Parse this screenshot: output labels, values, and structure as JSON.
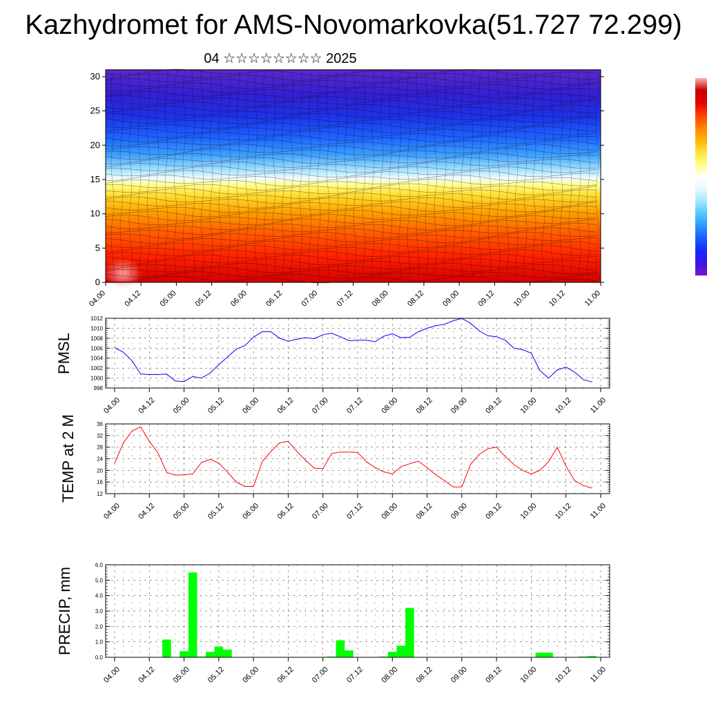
{
  "title": "Kazhydromet for AMS-Novomarkovka(51.727 72.299)",
  "subtitle": "04 ☆☆☆☆☆☆☆☆ 2025",
  "cross_section": {
    "y_ticks": [
      "0",
      "5",
      "10",
      "15",
      "20",
      "25",
      "30"
    ],
    "x_ticks": [
      "04.00",
      "04.12",
      "05.00",
      "05.12",
      "06.00",
      "06.12",
      "07.00",
      "07.12",
      "08.00",
      "08.12",
      "09.00",
      "09.12",
      "10.00",
      "10.12",
      "11.00"
    ]
  },
  "colorbar": {
    "colors": [
      "#7a14c8",
      "#3c14e6",
      "#1428ff",
      "#1e5aff",
      "#2896ff",
      "#50c8ff",
      "#a0e6ff",
      "#e6f8ff",
      "#ffffff",
      "#ffff80",
      "#ffe040",
      "#ffb400",
      "#ff8000",
      "#ff4000",
      "#e60000",
      "#c80000",
      "#ffb4b4"
    ]
  },
  "chart_data": [
    {
      "type": "line",
      "ylabel": "PMSL",
      "ylim": [
        998,
        1012
      ],
      "y_ticks": [
        "998",
        "1000",
        "1002",
        "1004",
        "1006",
        "1008",
        "1010",
        "1012"
      ],
      "categories": [
        "04.00",
        "04.12",
        "05.00",
        "05.12",
        "06.00",
        "06.12",
        "07.00",
        "07.12",
        "08.00",
        "08.12",
        "09.00",
        "09.12",
        "10.00",
        "10.12",
        "11.00"
      ],
      "x": [
        0,
        0.125,
        0.25,
        0.375,
        0.5,
        0.625,
        0.75,
        0.875,
        1,
        1.125,
        1.25,
        1.375,
        1.5,
        1.625,
        1.75,
        1.875,
        2,
        2.125,
        2.25,
        2.375,
        2.5,
        2.625,
        2.75,
        2.875,
        3,
        3.125,
        3.25,
        3.375,
        3.5,
        3.625,
        3.75,
        3.875,
        4,
        4.125,
        4.25,
        4.375,
        4.5,
        4.625,
        4.75,
        4.875,
        5,
        5.125,
        5.25,
        5.375,
        5.5,
        5.625,
        5.75,
        5.875,
        6,
        6.125,
        6.25,
        6.375,
        6.5,
        6.625,
        6.75,
        6.875,
        7
      ],
      "series": [
        {
          "color": "#0000ff",
          "values": [
            1006.1,
            1005.2,
            1003.5,
            1000.8,
            1000.7,
            1000.7,
            1000.8,
            999.4,
            999.3,
            1000.3,
            1000.0,
            1001.0,
            1002.7,
            1004.2,
            1005.8,
            1006.5,
            1008.2,
            1009.3,
            1009.3,
            1008.0,
            1007.4,
            1007.8,
            1008.1,
            1007.9,
            1008.7,
            1009.0,
            1008.3,
            1007.5,
            1007.6,
            1007.6,
            1007.3,
            1008.4,
            1008.9,
            1008.1,
            1008.2,
            1009.3,
            1010.0,
            1010.5,
            1010.8,
            1011.5,
            1012.0,
            1011.0,
            1009.5,
            1008.5,
            1008.3,
            1007.6,
            1006.0,
            1005.7,
            1005.0,
            1001.5,
            1000.0,
            1001.6,
            1002.2,
            1001.2,
            999.7,
            999.2,
            null
          ]
        }
      ]
    },
    {
      "type": "line",
      "ylabel": "TEMP at 2 M",
      "ylim": [
        12,
        36
      ],
      "y_ticks": [
        "12",
        "16",
        "20",
        "24",
        "28",
        "32",
        "36"
      ],
      "categories": [
        "04.00",
        "04.12",
        "05.00",
        "05.12",
        "06.00",
        "06.12",
        "07.00",
        "07.12",
        "08.00",
        "08.12",
        "09.00",
        "09.12",
        "10.00",
        "10.12",
        "11.00"
      ],
      "x": [
        0,
        0.125,
        0.25,
        0.375,
        0.5,
        0.625,
        0.75,
        0.875,
        1,
        1.125,
        1.25,
        1.375,
        1.5,
        1.625,
        1.75,
        1.875,
        2,
        2.125,
        2.25,
        2.375,
        2.5,
        2.625,
        2.75,
        2.875,
        3,
        3.125,
        3.25,
        3.375,
        3.5,
        3.625,
        3.75,
        3.875,
        4,
        4.125,
        4.25,
        4.375,
        4.5,
        4.625,
        4.75,
        4.875,
        5,
        5.125,
        5.25,
        5.375,
        5.5,
        5.625,
        5.75,
        5.875,
        6,
        6.125,
        6.25,
        6.375,
        6.5,
        6.625,
        6.75,
        6.875
      ],
      "series": [
        {
          "color": "#ff0000",
          "values": [
            22.5,
            29.5,
            33.5,
            35.0,
            30.0,
            26.0,
            19.3,
            18.4,
            18.5,
            18.8,
            22.7,
            23.8,
            22.5,
            19.5,
            16.0,
            14.5,
            14.5,
            23.0,
            26.5,
            29.5,
            30.0,
            26.5,
            23.5,
            20.8,
            20.6,
            25.8,
            26.3,
            26.3,
            26.2,
            23.0,
            21.0,
            19.5,
            18.8,
            21.3,
            22.3,
            23.2,
            21.0,
            18.5,
            16.5,
            14.3,
            14.3,
            22.0,
            25.5,
            27.5,
            28.0,
            24.8,
            22.0,
            20.0,
            18.8,
            20.0,
            23.0,
            28.0,
            21.5,
            16.5,
            14.8,
            13.9
          ]
        }
      ]
    },
    {
      "type": "bar",
      "ylabel": "PRECIP, mm",
      "ylim": [
        0,
        6
      ],
      "y_ticks": [
        "0.0",
        "1.0",
        "2.0",
        "3.0",
        "4.0",
        "5.0",
        "6.0"
      ],
      "categories": [
        "04.00",
        "04.12",
        "05.00",
        "05.12",
        "06.00",
        "06.12",
        "07.00",
        "07.12",
        "08.00",
        "08.12",
        "09.00",
        "09.12",
        "10.00",
        "10.12",
        "11.00"
      ],
      "x": [
        0,
        0.125,
        0.25,
        0.375,
        0.5,
        0.625,
        0.75,
        0.875,
        1,
        1.125,
        1.25,
        1.375,
        1.5,
        1.625,
        1.75,
        1.875,
        2,
        2.125,
        2.25,
        2.375,
        2.5,
        2.625,
        2.75,
        2.875,
        3,
        3.125,
        3.25,
        3.375,
        3.5,
        3.625,
        3.75,
        3.875,
        4,
        4.125,
        4.25,
        4.375,
        4.5,
        4.625,
        4.75,
        4.875,
        5,
        5.125,
        5.25,
        5.375,
        5.5,
        5.625,
        5.75,
        5.875,
        6,
        6.125,
        6.25,
        6.375,
        6.5,
        6.625,
        6.75,
        6.875
      ],
      "series": [
        {
          "color": "#00ff00",
          "values": [
            0,
            0,
            0,
            0,
            0.02,
            0,
            1.15,
            0,
            0.4,
            5.5,
            0.05,
            0.35,
            0.7,
            0.5,
            0,
            0,
            0,
            0,
            0,
            0,
            0,
            0,
            0,
            0,
            0,
            0.05,
            1.1,
            0.45,
            0,
            0,
            0,
            0.05,
            0.35,
            0.75,
            3.2,
            0,
            0,
            0,
            0,
            0,
            0,
            0,
            0,
            0,
            0,
            0,
            0,
            0,
            0,
            0.3,
            0.3,
            0,
            0,
            0,
            0.05,
            0.08
          ]
        }
      ]
    }
  ]
}
